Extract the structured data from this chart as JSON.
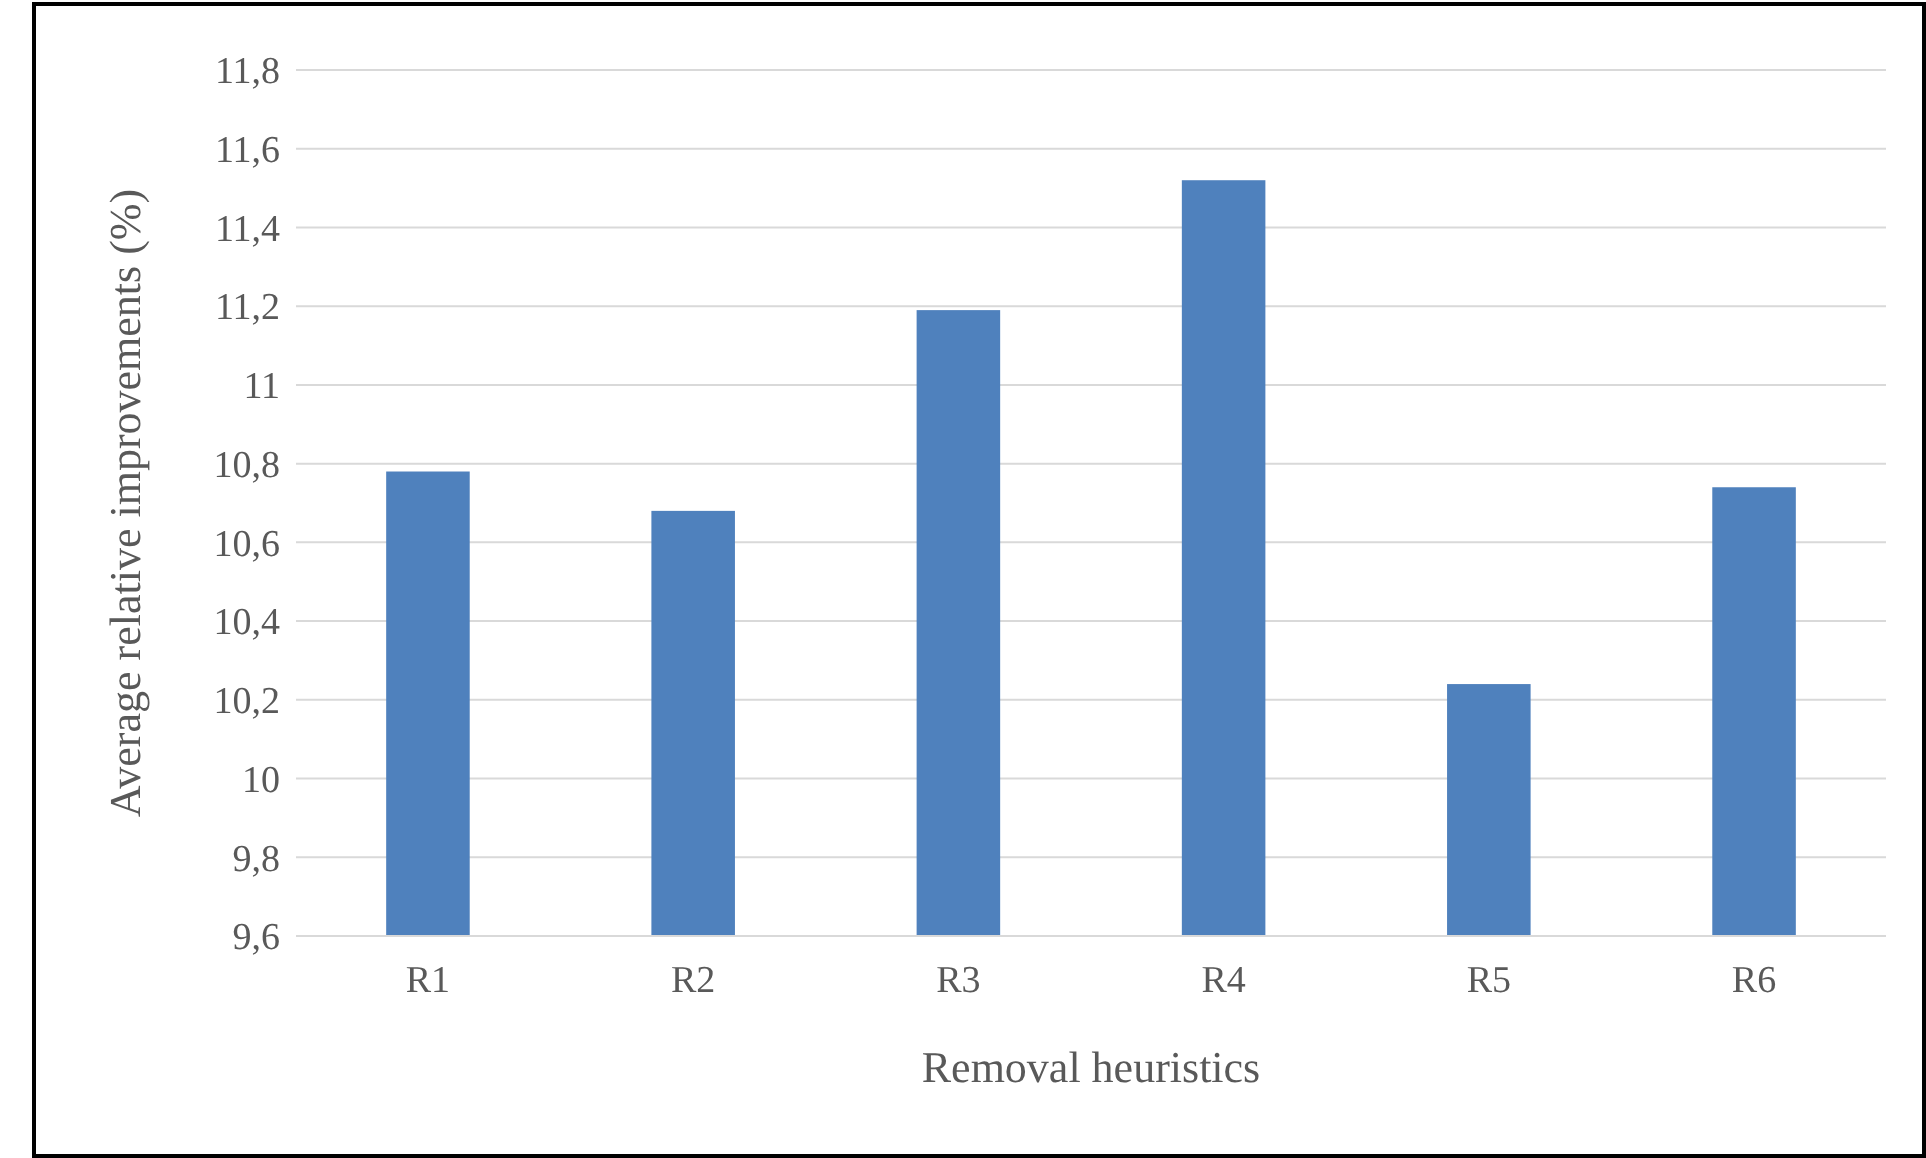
{
  "chart_data": {
    "type": "bar",
    "xlabel": "Removal heuristics",
    "ylabel": "Average relative improvements (%)",
    "categories": [
      "R1",
      "R2",
      "R3",
      "R4",
      "R5",
      "R6"
    ],
    "values": [
      10.78,
      10.68,
      11.19,
      11.52,
      10.24,
      10.74
    ],
    "color": "#4f81bd",
    "ylim": [
      9.6,
      11.8
    ],
    "yticks": [
      {
        "value": 9.6,
        "label": "9,6"
      },
      {
        "value": 9.8,
        "label": "9,8"
      },
      10,
      {
        "value": 10.2,
        "label": "10,2"
      },
      {
        "value": 10.4,
        "label": "10,4"
      },
      {
        "value": 10.6,
        "label": "10,6"
      },
      {
        "value": 10.8,
        "label": "10,8"
      },
      11,
      {
        "value": 11.2,
        "label": "11,2"
      },
      {
        "value": 11.4,
        "label": "11,4"
      },
      {
        "value": 11.6,
        "label": "11,6"
      },
      {
        "value": 11.8,
        "label": "11,8"
      }
    ],
    "grid": "y"
  }
}
